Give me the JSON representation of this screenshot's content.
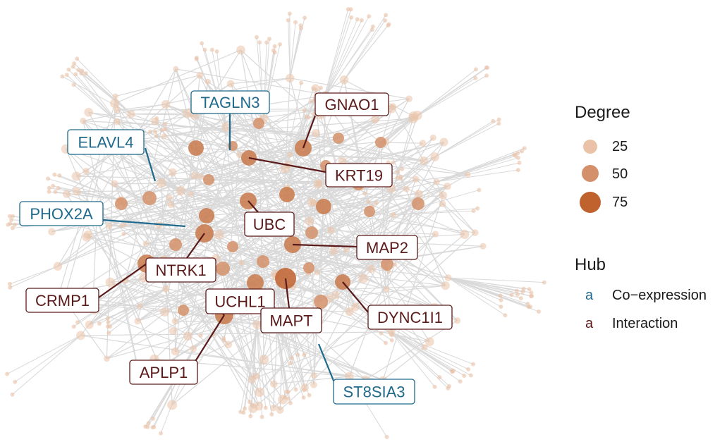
{
  "colors": {
    "edge": "#d9d9d9",
    "node_small": "#e9c2a8",
    "node_mid": "#d4906a",
    "node_big": "#c0622e",
    "coexpression": "#1f6a8c",
    "interaction": "#5a1a1a"
  },
  "hubs": [
    {
      "name": "TAGLN3",
      "type": "Co-expression"
    },
    {
      "name": "GNAO1",
      "type": "Interaction"
    },
    {
      "name": "ELAVL4",
      "type": "Co-expression"
    },
    {
      "name": "KRT19",
      "type": "Interaction"
    },
    {
      "name": "PHOX2A",
      "type": "Co-expression"
    },
    {
      "name": "UBC",
      "type": "Interaction"
    },
    {
      "name": "MAP2",
      "type": "Interaction"
    },
    {
      "name": "NTRK1",
      "type": "Interaction"
    },
    {
      "name": "CRMP1",
      "type": "Interaction"
    },
    {
      "name": "UCHL1",
      "type": "Interaction"
    },
    {
      "name": "MAPT",
      "type": "Interaction"
    },
    {
      "name": "DYNC1I1",
      "type": "Interaction"
    },
    {
      "name": "APLP1",
      "type": "Interaction"
    },
    {
      "name": "ST8SIA3",
      "type": "Co-expression"
    }
  ],
  "legend": {
    "degree_title": "Degree",
    "degree_values": [
      "25",
      "50",
      "75"
    ],
    "hub_title": "Hub",
    "hub_key": "a",
    "hub_types": [
      "Co−expression",
      "Interaction"
    ]
  }
}
